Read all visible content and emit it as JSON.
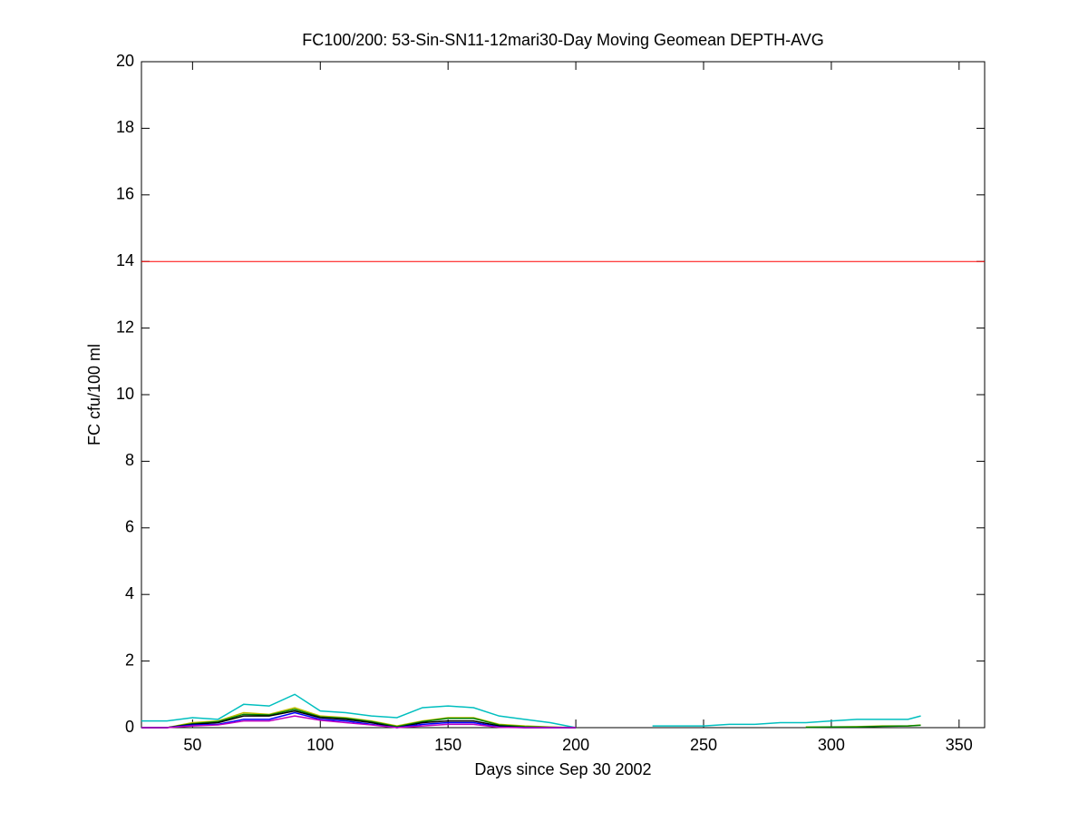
{
  "chart_data": {
    "type": "line",
    "title": "FC100/200: 53-Sin-SN11-12mari30-Day Moving Geomean DEPTH-AVG",
    "x_label": "Days since Sep 30 2002",
    "y_label": "FC cfu/100 ml",
    "x": [
      30,
      40,
      50,
      60,
      70,
      80,
      90,
      100,
      110,
      120,
      130,
      140,
      150,
      160,
      170,
      180,
      190,
      200,
      210,
      220,
      230,
      240,
      250,
      260,
      270,
      280,
      290,
      300,
      310,
      320,
      330,
      335
    ],
    "series": [
      {
        "color": "#00bfbf",
        "values": [
          0.2,
          0.2,
          0.3,
          0.25,
          0.7,
          0.65,
          1.0,
          0.5,
          0.45,
          0.35,
          0.3,
          0.6,
          0.65,
          0.6,
          0.35,
          0.25,
          0.15,
          0,
          null,
          null,
          0.05,
          0.05,
          0.05,
          0.1,
          0.1,
          0.15,
          0.15,
          0.2,
          0.25,
          0.25,
          0.25,
          0.35
        ]
      },
      {
        "color": "#bfbf00",
        "values": [
          0,
          0,
          0.15,
          0.2,
          0.45,
          0.4,
          0.6,
          0.35,
          0.3,
          0.2,
          0.05,
          0.2,
          0.3,
          0.3,
          0.1,
          0.05,
          0.02,
          0,
          null,
          null,
          null,
          null,
          null,
          null,
          null,
          null,
          0.02,
          0.02,
          0.03,
          0.05,
          0.05,
          0.08
        ]
      },
      {
        "color": "#008000",
        "values": [
          0,
          0,
          0.12,
          0.18,
          0.4,
          0.38,
          0.55,
          0.32,
          0.28,
          0.18,
          0.03,
          0.18,
          0.28,
          0.28,
          0.08,
          0.03,
          0.01,
          0,
          null,
          null,
          null,
          null,
          null,
          null,
          null,
          null,
          0.01,
          0.02,
          0.02,
          0.04,
          0.05,
          0.07
        ]
      },
      {
        "color": "#000000",
        "values": [
          0,
          0,
          0.1,
          0.15,
          0.35,
          0.35,
          0.5,
          0.3,
          0.25,
          0.15,
          0,
          0.15,
          0.2,
          0.2,
          0.05,
          0,
          0,
          0,
          null,
          null,
          null,
          null,
          null,
          null,
          null,
          null,
          null,
          null,
          null,
          null,
          null,
          null
        ]
      },
      {
        "color": "#0000ff",
        "values": [
          0,
          0,
          0.08,
          0.1,
          0.25,
          0.25,
          0.45,
          0.25,
          0.2,
          0.1,
          0,
          0.1,
          0.15,
          0.15,
          0.02,
          0,
          0,
          0,
          null,
          null,
          null,
          null,
          null,
          null,
          null,
          null,
          null,
          null,
          null,
          null,
          null,
          null
        ]
      },
      {
        "color": "#bf00bf",
        "values": [
          0,
          0,
          0.05,
          0.08,
          0.2,
          0.2,
          0.35,
          0.22,
          0.15,
          0.08,
          0,
          0.05,
          0.1,
          0.1,
          0.01,
          0,
          0,
          0,
          null,
          null,
          null,
          null,
          null,
          null,
          null,
          null,
          null,
          null,
          null,
          null,
          null,
          null
        ]
      }
    ],
    "threshold": {
      "value": 14,
      "color": "#ff0000"
    },
    "xlim": [
      30,
      360
    ],
    "xticks": [
      50,
      100,
      150,
      200,
      250,
      300,
      350
    ],
    "ylim": [
      0,
      20
    ],
    "yticks": [
      0,
      2,
      4,
      6,
      8,
      10,
      12,
      14,
      16,
      18,
      20
    ],
    "grid": false
  }
}
